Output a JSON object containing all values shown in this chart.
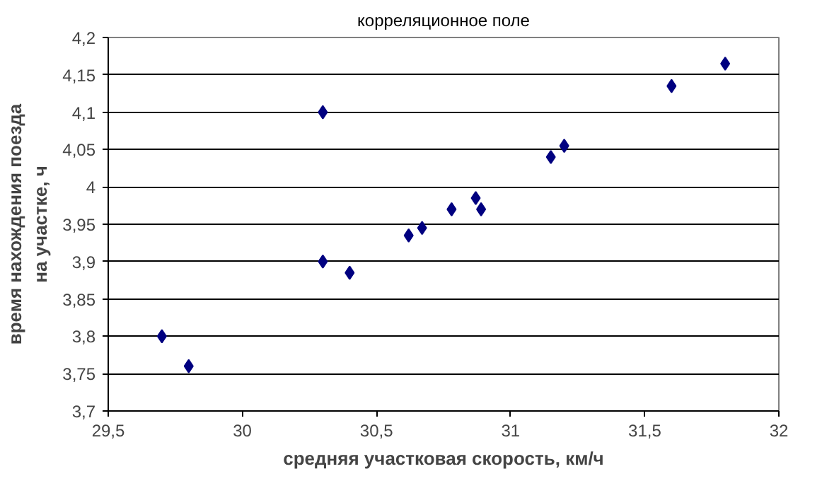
{
  "chart_data": {
    "type": "scatter",
    "title": "корреляционное поле",
    "xlabel": "средняя участковая скорость, км/ч",
    "ylabel": "время нахождения поезда на участке, ч",
    "x": [
      29.7,
      29.8,
      30.3,
      30.3,
      30.4,
      30.62,
      30.67,
      30.78,
      30.87,
      30.89,
      31.15,
      31.2,
      31.6,
      31.8
    ],
    "series": [
      {
        "color": "#000080",
        "values": [
          3.8,
          3.76,
          4.1,
          3.9,
          3.885,
          3.935,
          3.945,
          3.97,
          3.985,
          3.97,
          4.04,
          4.055,
          4.135,
          4.165
        ]
      }
    ],
    "marker": "diamond",
    "grid": "y",
    "xlim": [
      29.5,
      32
    ],
    "ylim": [
      3.7,
      4.2
    ],
    "xticks": [
      {
        "value": 29.5,
        "label": "29,5"
      },
      30,
      {
        "value": 30.5,
        "label": "30,5"
      },
      31,
      {
        "value": 31.5,
        "label": "31,5"
      },
      32
    ],
    "yticks": [
      {
        "value": 3.7,
        "label": "3,7"
      },
      {
        "value": 3.75,
        "label": "3,75"
      },
      {
        "value": 3.8,
        "label": "3,8"
      },
      {
        "value": 3.85,
        "label": "3,85"
      },
      {
        "value": 3.9,
        "label": "3,9"
      },
      {
        "value": 3.95,
        "label": "3,95"
      },
      4,
      {
        "value": 4.05,
        "label": "4,05"
      },
      {
        "value": 4.1,
        "label": "4,1"
      },
      {
        "value": 4.15,
        "label": "4,15"
      },
      {
        "value": 4.2,
        "label": "4,2"
      }
    ]
  }
}
